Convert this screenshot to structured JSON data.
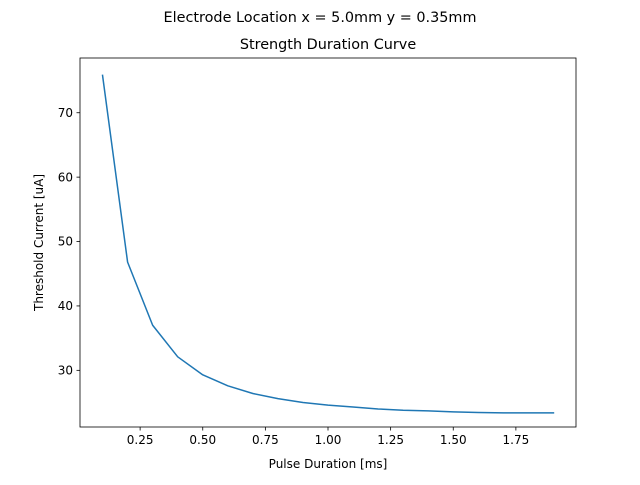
{
  "figure": {
    "suptitle": "Electrode Location x = 5.0mm y = 0.35mm"
  },
  "chart_data": {
    "type": "line",
    "title": "Strength Duration Curve",
    "xlabel": "Pulse Duration [ms]",
    "ylabel": "Threshold Current [uA]",
    "xlim": [
      0.01,
      1.99
    ],
    "ylim": [
      21.2,
      78.5
    ],
    "xticks": [
      0.25,
      0.5,
      0.75,
      1.0,
      1.25,
      1.5,
      1.75
    ],
    "xtick_labels": [
      "0.25",
      "0.50",
      "0.75",
      "1.00",
      "1.25",
      "1.50",
      "1.75"
    ],
    "yticks": [
      30,
      40,
      50,
      60,
      70
    ],
    "ytick_labels": [
      "30",
      "40",
      "50",
      "60",
      "70"
    ],
    "grid": false,
    "legend": null,
    "color": "#1f77b4",
    "series": [
      {
        "x": [
          0.1,
          0.2,
          0.3,
          0.4,
          0.5,
          0.6,
          0.7,
          0.8,
          0.9,
          1.0,
          1.1,
          1.2,
          1.3,
          1.4,
          1.5,
          1.6,
          1.7,
          1.8,
          1.9
        ],
        "y": [
          75.8,
          46.8,
          37.0,
          32.1,
          29.3,
          27.6,
          26.4,
          25.6,
          25.0,
          24.6,
          24.3,
          24.0,
          23.8,
          23.7,
          23.55,
          23.45,
          23.4,
          23.4,
          23.4
        ]
      }
    ]
  }
}
